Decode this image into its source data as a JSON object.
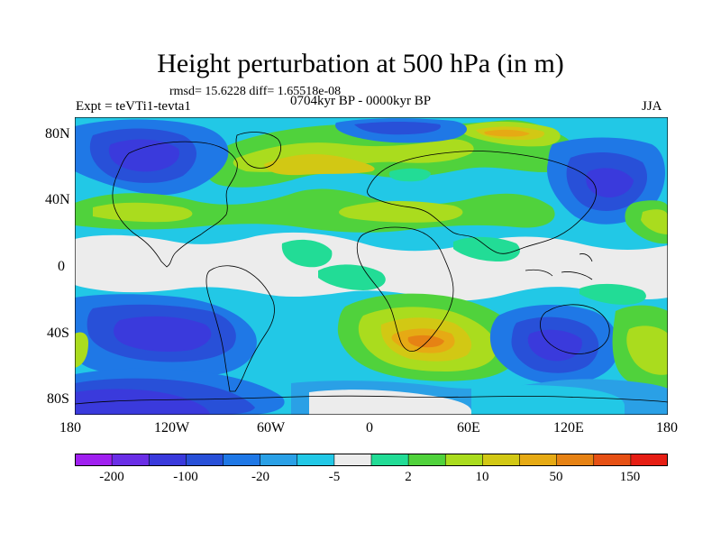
{
  "title": "Height perturbation at 500 hPa (in m)",
  "stats": "rmsd= 15.6228 diff= 1.65518e-08",
  "period": "0704kyr BP - 0000kyr BP",
  "experiment": "Expt = teVTi1-tevta1",
  "season": "JJA",
  "map": {
    "lon_ticks": [
      "180",
      "120W",
      "60W",
      "0",
      "60E",
      "120E",
      "180"
    ],
    "lat_ticks": [
      "80N",
      "40N",
      "0",
      "40S",
      "80S"
    ]
  },
  "colorbar": {
    "labels": [
      "-200",
      "-100",
      "-20",
      "-5",
      "2",
      "10",
      "50",
      "150"
    ],
    "colors": [
      "#a020f0",
      "#6a2ee6",
      "#3a3adc",
      "#2850d8",
      "#1f78e6",
      "#2aa0e6",
      "#22c8e6",
      "#ececec",
      "#22dc96",
      "#50d23c",
      "#aadc1e",
      "#d2c814",
      "#e6aa14",
      "#e68214",
      "#e65014",
      "#e61e14"
    ]
  }
}
